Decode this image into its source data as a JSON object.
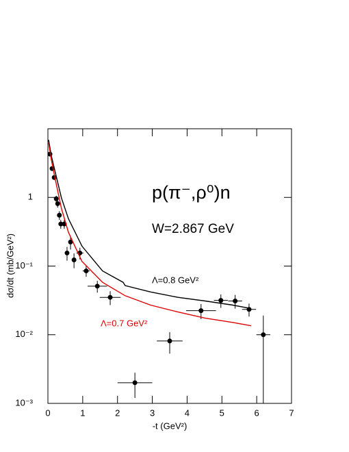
{
  "chart_data": {
    "type": "scatter",
    "title": "p(π⁻,ρ⁰)n",
    "subtitle": "W=2.867 GeV",
    "x_label": "-t (GeV²)",
    "y_label": "dσ/dt (mb/GeV²)",
    "log_y": true,
    "xlim": [
      0,
      7
    ],
    "ylim": [
      0.001,
      10
    ],
    "xticks": [
      0,
      1,
      2,
      3,
      4,
      5,
      6,
      7
    ],
    "yticks": [
      {
        "value": 0.001,
        "label": "10⁻³"
      },
      {
        "value": 0.01,
        "label": "10⁻²"
      },
      {
        "value": 0.1,
        "label": "10⁻¹"
      },
      1
    ],
    "series": [
      {
        "name": "data",
        "kind": "points",
        "color": "#000000",
        "x": [
          0.06,
          0.12,
          0.18,
          0.24,
          0.28,
          0.33,
          0.37,
          0.47,
          0.55,
          0.65,
          0.75,
          0.92,
          1.1,
          1.42,
          1.79,
          2.5,
          3.5,
          4.4,
          4.97,
          5.38,
          5.78,
          6.19
        ],
        "values": [
          4.27,
          2.63,
          1.95,
          0.955,
          0.81,
          0.55,
          0.41,
          0.41,
          0.155,
          0.224,
          0.123,
          0.155,
          0.085,
          0.051,
          0.035,
          0.002,
          0.0081,
          0.0224,
          0.0316,
          0.031,
          0.0234,
          0.01
        ],
        "xerr": [
          0.02,
          0.02,
          0.02,
          0.02,
          0.02,
          0.02,
          0.03,
          0.05,
          0.05,
          0.05,
          0.05,
          0.1,
          0.1,
          0.28,
          0.3,
          0.5,
          0.37,
          0.43,
          0.2,
          0.2,
          0.2,
          0.2
        ],
        "yerr": [
          0.3,
          0.2,
          0.15,
          0.1,
          0.1,
          0.08,
          0.06,
          0.06,
          0.035,
          0.05,
          0.03,
          0.03,
          0.015,
          0.01,
          0.008,
          0.0008,
          0.0028,
          0.0055,
          0.007,
          0.007,
          0.005,
          0.009
        ]
      },
      {
        "name": "Λ=0.8 GeV²",
        "kind": "line",
        "color": "#000000",
        "x": [
          0.02,
          0.1,
          0.2,
          0.39,
          0.59,
          0.98,
          1.57,
          2.16,
          2.22,
          2.95,
          3.74,
          4.52,
          5.31,
          5.84
        ],
        "values": [
          6.9,
          4.0,
          2.45,
          0.98,
          0.49,
          0.195,
          0.085,
          0.058,
          0.052,
          0.042,
          0.035,
          0.031,
          0.027,
          0.024
        ]
      },
      {
        "name": "Λ=0.7 GeV²",
        "kind": "line",
        "color": "#e00000",
        "x": [
          0.02,
          0.1,
          0.2,
          0.39,
          0.59,
          0.98,
          1.57,
          2.22,
          2.95,
          3.74,
          4.52,
          5.31,
          5.84
        ],
        "values": [
          6.3,
          3.5,
          1.95,
          0.69,
          0.31,
          0.117,
          0.058,
          0.037,
          0.027,
          0.0214,
          0.0174,
          0.0151,
          0.0135
        ]
      }
    ]
  }
}
